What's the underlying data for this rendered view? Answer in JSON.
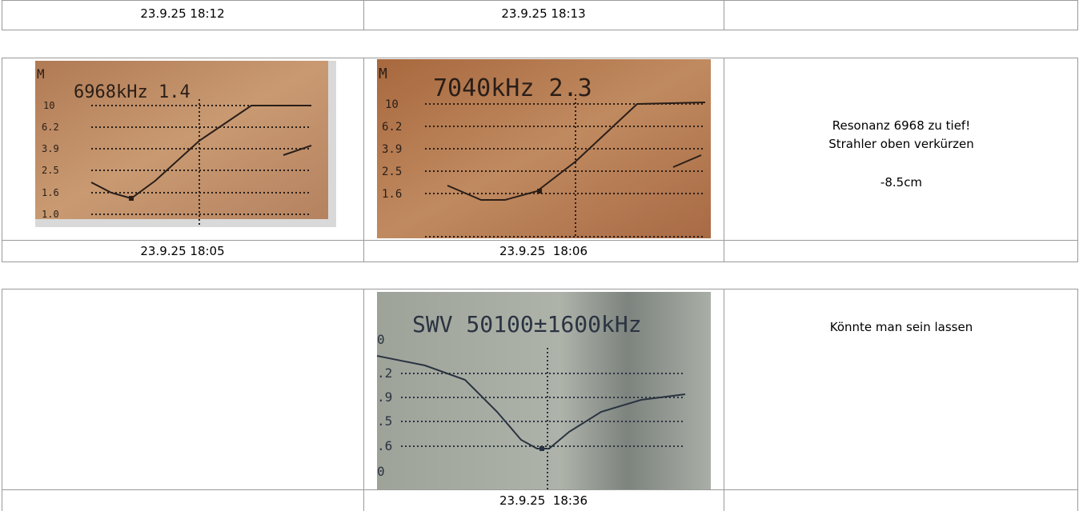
{
  "table_1": {
    "dates": [
      "23.9.25 18:12",
      "23.9.25 18:13"
    ]
  },
  "table_2": {
    "photos": [
      {
        "unit": "M",
        "title": "6968kHz 1.4",
        "scale": [
          "10",
          "6.2",
          "3.9",
          "2.5",
          "1.6",
          "1.0"
        ]
      },
      {
        "unit": "M",
        "title": "7040kHz 2.3",
        "scale": [
          "10",
          "6.2",
          "3.9",
          "2.5",
          "1.6"
        ]
      }
    ],
    "note": [
      "Resonanz 6968 zu tief!",
      "Strahler oben verkürzen",
      "-8.5cm"
    ],
    "dates": [
      "23.9.25 18:05",
      "23.9.25  18:06"
    ]
  },
  "table_3": {
    "photo": {
      "title": "SWV 50100±1600kHz",
      "scale": [
        "0",
        ".2",
        ".9",
        ".5",
        ".6",
        "0"
      ]
    },
    "note": "Könnte man sein lassen",
    "date": "23.9.25  18:36"
  }
}
